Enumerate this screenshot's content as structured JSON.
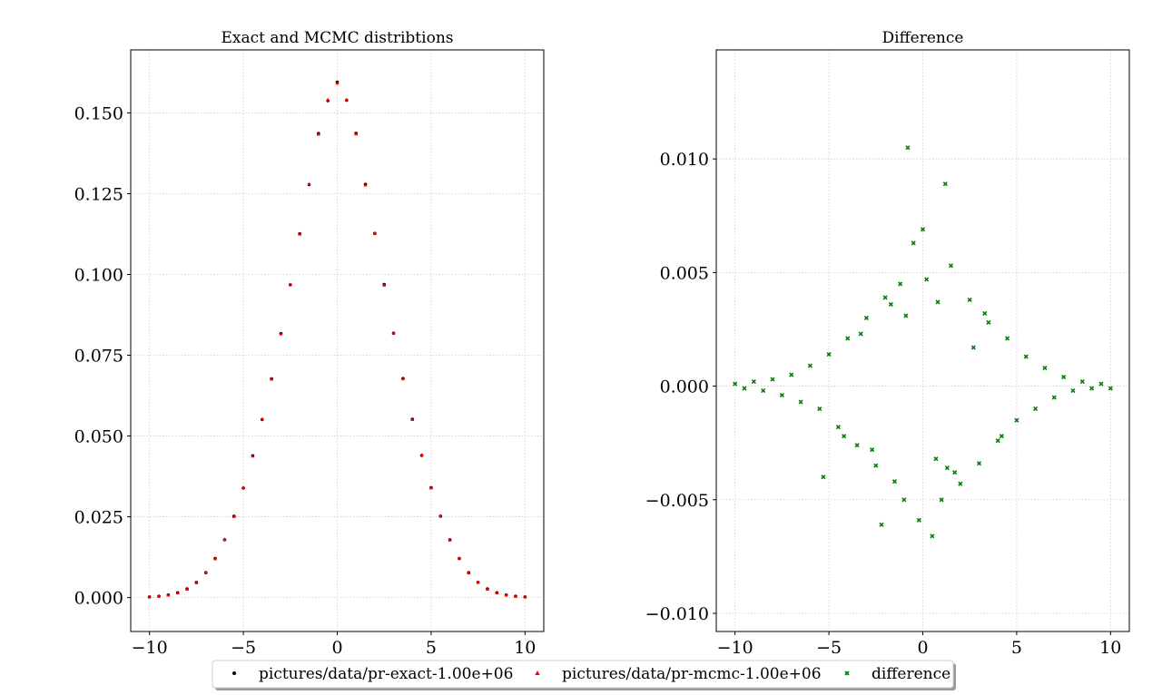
{
  "chart_data": [
    {
      "type": "scatter",
      "title": "Exact and MCMC distribtions",
      "xlabel": "",
      "ylabel": "",
      "xlim": [
        -11,
        11
      ],
      "ylim": [
        -0.0105,
        0.1695
      ],
      "xticks": [
        -10,
        -5,
        0,
        5,
        10
      ],
      "xtick_labels": [
        "−10",
        "−5",
        "0",
        "5",
        "10"
      ],
      "yticks": [
        0,
        0.025,
        0.05,
        0.075,
        0.1,
        0.125,
        0.15
      ],
      "ytick_labels": [
        "0.000",
        "0.025",
        "0.050",
        "0.075",
        "0.100",
        "0.125",
        "0.150"
      ],
      "grid": true,
      "series": [
        {
          "name": "pictures/data/pr-exact-1.00e+06",
          "color": "#000000",
          "marker": "point",
          "x": [
            -10,
            -9.5,
            -9,
            -8.5,
            -8,
            -7.5,
            -7,
            -6.5,
            -6,
            -5.5,
            -5,
            -4.5,
            -4,
            -3.5,
            -3,
            -2.5,
            -2,
            -1.5,
            -1,
            -0.5,
            0,
            0.5,
            1,
            1.5,
            2,
            2.5,
            3,
            3.5,
            4,
            4.5,
            5,
            5.5,
            6,
            6.5,
            7,
            7.5,
            8,
            8.5,
            9,
            9.5,
            10
          ],
          "y": [
            0.0002,
            0.0004,
            0.0008,
            0.0015,
            0.0027,
            0.0047,
            0.0077,
            0.0121,
            0.0179,
            0.0252,
            0.0339,
            0.0439,
            0.0551,
            0.0677,
            0.0817,
            0.0968,
            0.1126,
            0.1278,
            0.1436,
            0.1538,
            0.1595,
            0.1539,
            0.1437,
            0.1279,
            0.1127,
            0.0969,
            0.0818,
            0.0678,
            0.0552,
            0.044,
            0.034,
            0.0252,
            0.0179,
            0.0121,
            0.0077,
            0.0047,
            0.0027,
            0.0015,
            0.0008,
            0.0004,
            0.0002
          ]
        },
        {
          "name": "pictures/data/pr-mcmc-1.00e+06",
          "color": "#ff0000",
          "marker": "triangle",
          "x": [
            -10,
            -9.5,
            -9,
            -8.5,
            -8,
            -7.5,
            -7,
            -6.5,
            -6,
            -5.5,
            -5,
            -4.5,
            -4,
            -3.5,
            -3,
            -2.5,
            -2,
            -1.5,
            -1,
            -0.5,
            0,
            0.5,
            1,
            1.5,
            2,
            2.5,
            3,
            3.5,
            4,
            4.5,
            5,
            5.5,
            6,
            6.5,
            7,
            7.5,
            8,
            8.5,
            9,
            9.5,
            10
          ],
          "y": [
            0.0002,
            0.0004,
            0.0008,
            0.0015,
            0.0026,
            0.0046,
            0.0078,
            0.012,
            0.018,
            0.0251,
            0.034,
            0.0438,
            0.0552,
            0.0676,
            0.0816,
            0.0969,
            0.1125,
            0.128,
            0.1434,
            0.1541,
            0.1592,
            0.1541,
            0.1435,
            0.1277,
            0.1128,
            0.0967,
            0.0819,
            0.0677,
            0.0551,
            0.0441,
            0.0339,
            0.0253,
            0.0178,
            0.0122,
            0.0076,
            0.0047,
            0.0026,
            0.0015,
            0.0008,
            0.0004,
            0.0002
          ]
        }
      ]
    },
    {
      "type": "scatter",
      "title": "Difference",
      "xlabel": "",
      "ylabel": "",
      "xlim": [
        -11,
        11
      ],
      "ylim": [
        -0.0108,
        0.0148
      ],
      "xticks": [
        -10,
        -5,
        0,
        5,
        10
      ],
      "xtick_labels": [
        "−10",
        "−5",
        "0",
        "5",
        "10"
      ],
      "yticks": [
        -0.01,
        -0.005,
        0,
        0.005,
        0.01
      ],
      "ytick_labels": [
        "−0.010",
        "−0.005",
        "0.000",
        "0.005",
        "0.010"
      ],
      "grid": true,
      "series": [
        {
          "name": "difference",
          "color": "#008000",
          "marker": "x",
          "x": [
            -10,
            -9.5,
            -9,
            -8.5,
            -8,
            -7.5,
            -7,
            -6.5,
            -6,
            -5.5,
            -5.3,
            -5,
            -4.5,
            -4,
            -3.5,
            -3,
            -2.5,
            -2.2,
            -2,
            -1.5,
            -1.2,
            -1,
            -0.8,
            -0.5,
            -0.2,
            0,
            0.2,
            0.5,
            0.8,
            1,
            1.2,
            1.5,
            2,
            2.5,
            3,
            3.5,
            4,
            4.5,
            5,
            5.5,
            6,
            6.5,
            7,
            7.5,
            8,
            8.5,
            9,
            9.5,
            10,
            -3.3,
            -2.7,
            -1.7,
            0.7,
            1.7,
            2.7,
            3.3,
            -4.2,
            4.2,
            -0.9,
            1.3
          ],
          "y": [
            0.0001,
            -0.0001,
            0.0002,
            -0.0002,
            0.0003,
            -0.0004,
            0.0005,
            -0.0007,
            0.0009,
            -0.001,
            -0.004,
            0.0014,
            -0.0018,
            0.0021,
            -0.0026,
            0.003,
            -0.0035,
            -0.0061,
            0.0039,
            -0.0042,
            0.0045,
            -0.005,
            0.0105,
            0.0063,
            -0.0059,
            0.0069,
            0.0047,
            -0.0066,
            0.0037,
            -0.005,
            0.0089,
            0.0053,
            -0.0043,
            0.0038,
            -0.0034,
            0.0028,
            -0.0024,
            0.0021,
            -0.0015,
            0.0013,
            -0.001,
            0.0008,
            -0.0005,
            0.0004,
            -0.0002,
            0.0002,
            -0.0001,
            0.0001,
            -0.0001,
            0.0023,
            -0.0028,
            0.0036,
            -0.0032,
            -0.0038,
            0.0017,
            0.0032,
            -0.0022,
            -0.0022,
            0.0031,
            -0.0036
          ]
        }
      ]
    }
  ],
  "legend": {
    "placement": "bottom-center",
    "entries": [
      {
        "label": "pictures/data/pr-exact-1.00e+06",
        "marker": "point",
        "color": "#000000"
      },
      {
        "label": "pictures/data/pr-mcmc-1.00e+06",
        "marker": "triangle",
        "color": "#ff0000"
      },
      {
        "label": "difference",
        "marker": "x",
        "color": "#008000"
      }
    ]
  }
}
